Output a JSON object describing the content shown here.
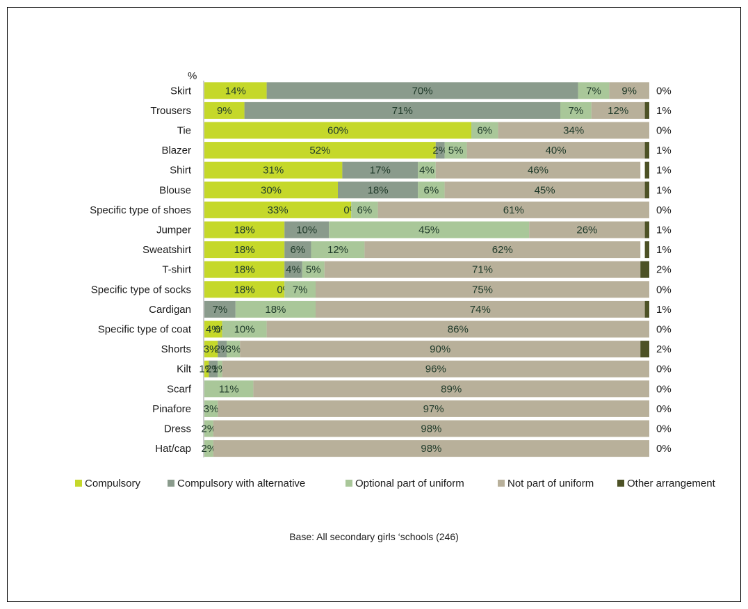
{
  "chart_data": {
    "type": "bar",
    "orientation": "horizontal",
    "stacked": true,
    "unit_label": "%",
    "note": "Base: All secondary girls ‘schools (246)",
    "xlim": [
      0,
      100
    ],
    "categories": [
      "Skirt",
      "Trousers",
      "Tie",
      "Blazer",
      "Shirt",
      "Blouse",
      "Specific type of shoes",
      "Jumper",
      "Sweatshirt",
      "T-shirt",
      "Specific type of socks",
      "Cardigan",
      "Specific type of coat",
      "Shorts",
      "Kilt",
      "Scarf",
      "Pinafore",
      "Dress",
      "Hat/cap"
    ],
    "series": [
      {
        "name": "Compulsory",
        "color": "#c5d82a",
        "values": [
          14,
          9,
          60,
          52,
          31,
          30,
          33,
          18,
          18,
          18,
          18,
          0,
          4,
          3,
          1,
          0,
          0,
          0,
          0
        ],
        "labels": [
          "14%",
          "9%",
          "60%",
          "52%",
          "31%",
          "30%",
          "33%",
          "18%",
          "18%",
          "18%",
          "18%",
          "",
          "4%",
          "3%",
          "1%",
          "",
          "",
          "",
          ""
        ]
      },
      {
        "name": "Compulsory with alternative",
        "color": "#8a9b8c",
        "values": [
          70,
          71,
          0,
          2,
          17,
          18,
          0,
          10,
          6,
          4,
          0,
          7,
          0,
          2,
          2,
          0,
          0,
          0,
          0
        ],
        "labels": [
          "70%",
          "71%",
          "",
          "2%",
          "17%",
          "18%",
          "0%",
          "10%",
          "6%",
          "4%",
          "0%",
          "7%",
          "0%",
          "2%",
          "2%",
          "",
          "",
          "",
          ""
        ]
      },
      {
        "name": "Optional part of uniform",
        "color": "#a9c799",
        "values": [
          7,
          7,
          6,
          5,
          4,
          6,
          6,
          45,
          12,
          5,
          7,
          18,
          10,
          3,
          1,
          11,
          3,
          2,
          2
        ],
        "labels": [
          "7%",
          "7%",
          "6%",
          "5%",
          "4%",
          "6%",
          "6%",
          "45%",
          "12%",
          "5%",
          "7%",
          "18%",
          "10%",
          "3%",
          "1%",
          "11%",
          "3%",
          "2%",
          "2%"
        ]
      },
      {
        "name": "Not part of uniform",
        "color": "#b8b09a",
        "values": [
          9,
          12,
          34,
          40,
          46,
          45,
          61,
          26,
          62,
          71,
          75,
          74,
          86,
          90,
          96,
          89,
          97,
          98,
          98
        ],
        "labels": [
          "9%",
          "12%",
          "34%",
          "40%",
          "46%",
          "45%",
          "61%",
          "26%",
          "62%",
          "71%",
          "75%",
          "74%",
          "86%",
          "90%",
          "96%",
          "89%",
          "97%",
          "98%",
          "98%"
        ]
      },
      {
        "name": "Other arrangement",
        "color": "#4d5226",
        "values": [
          0,
          1,
          0,
          1,
          1,
          1,
          0,
          1,
          1,
          2,
          0,
          1,
          0,
          2,
          0,
          0,
          0,
          0,
          0
        ],
        "labels": [
          "0%",
          "1%",
          "0%",
          "1%",
          "1%",
          "1%",
          "0%",
          "1%",
          "1%",
          "2%",
          "0%",
          "1%",
          "0%",
          "2%",
          "0%",
          "0%",
          "0%",
          "0%",
          "0%"
        ]
      }
    ],
    "legend_position": "bottom",
    "grid": false
  }
}
